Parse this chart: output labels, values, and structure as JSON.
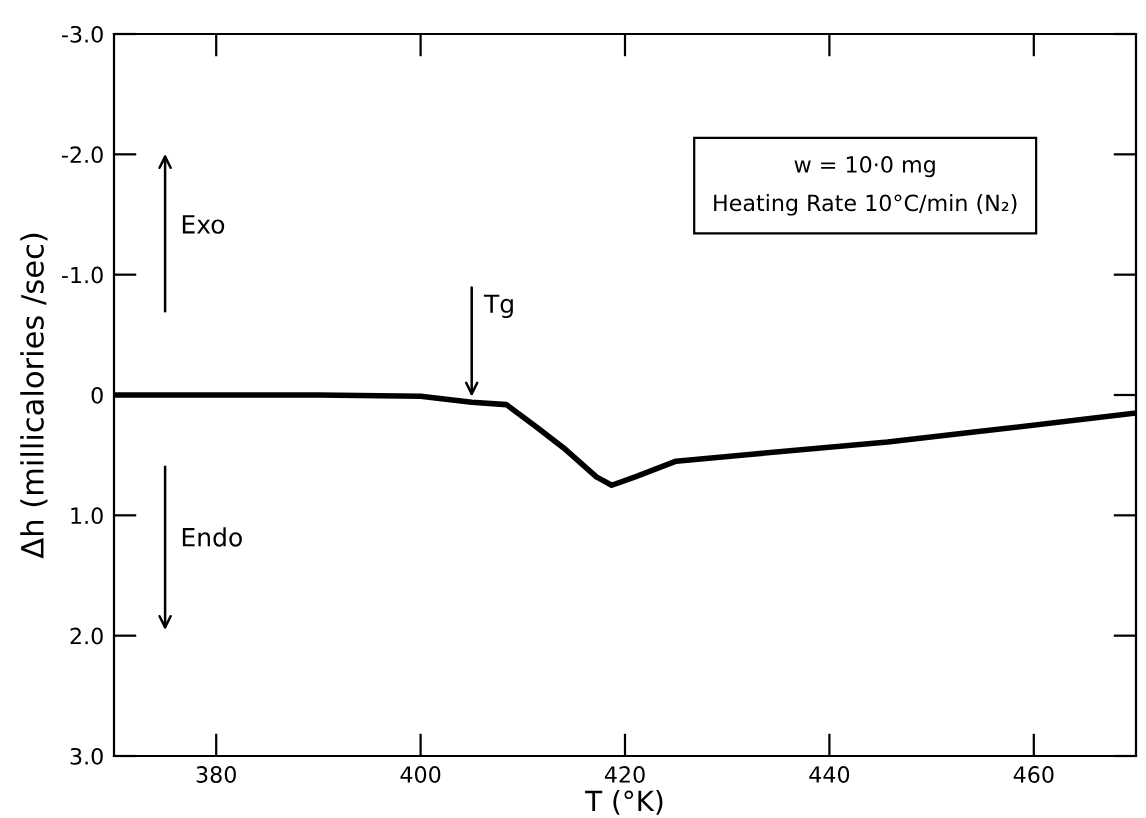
{
  "chart_data": {
    "type": "line",
    "xlabel": "T (°K)",
    "ylabel": "Δh (millicalories /sec)",
    "x": [
      370,
      380,
      390,
      400,
      405,
      408.4,
      411.4,
      414,
      417.2,
      418.7,
      421,
      425,
      432.7,
      445.7,
      455,
      470
    ],
    "series": [
      {
        "color": "#000000",
        "values": [
          0,
          0,
          0,
          0.01,
          0.06,
          0.08,
          0.27,
          0.44,
          0.68,
          0.75,
          0.68,
          0.55,
          0.49,
          0.39,
          0.3,
          0.15
        ]
      }
    ],
    "xlim": [
      370,
      470
    ],
    "xticks": [
      380,
      400,
      420,
      440,
      460
    ],
    "ylim": [
      3.0,
      -3.0
    ],
    "yticks": [
      {
        "value": -3,
        "label": "-3.0"
      },
      {
        "value": -2,
        "label": "-2.0"
      },
      {
        "value": -1,
        "label": "-1.0"
      },
      0,
      {
        "value": 1,
        "label": "1.0"
      },
      {
        "value": 2,
        "label": "2.0"
      },
      {
        "value": 3,
        "label": "3.0"
      }
    ],
    "grid": false,
    "marker": "none",
    "line_style": "solid",
    "annotations": [
      {
        "text": "Tg",
        "x": 405,
        "y": 0.06
      },
      "Exo",
      "Endo",
      "w = 10·0 mg",
      "Heating Rate 10°C/min (N₂)"
    ]
  }
}
